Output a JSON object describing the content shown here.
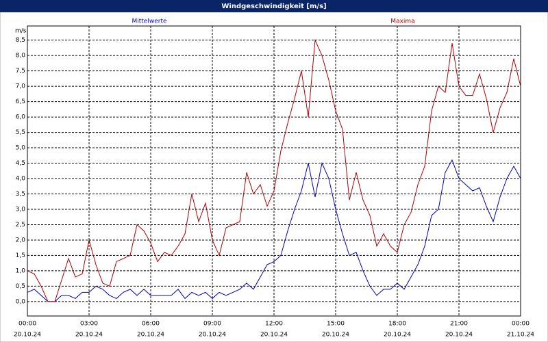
{
  "chart_data": {
    "type": "line",
    "title": "Windgeschwindigkeit [m/s]",
    "y_label": "m/s",
    "x": [
      0,
      20,
      40,
      60,
      80,
      100,
      120,
      140,
      160,
      180,
      200,
      220,
      240,
      260,
      280,
      300,
      320,
      340,
      360,
      380,
      400,
      420,
      440,
      460,
      480,
      500,
      520,
      540,
      560,
      580,
      600,
      620,
      640,
      660,
      680,
      700,
      720,
      740,
      760,
      780,
      800,
      820,
      840,
      860,
      880,
      900,
      920,
      940,
      960,
      980,
      1000,
      1020,
      1040,
      1060,
      1080,
      1100,
      1120,
      1140,
      1160,
      1180,
      1200,
      1220,
      1240,
      1260,
      1280,
      1300,
      1320,
      1340,
      1360,
      1380,
      1400,
      1420,
      1440
    ],
    "series": [
      {
        "name": "Mittelwerte",
        "color": "#0000c0",
        "values": [
          0.3,
          0.4,
          0.2,
          0.0,
          0.0,
          0.2,
          0.2,
          0.1,
          0.3,
          0.3,
          0.5,
          0.4,
          0.2,
          0.1,
          0.3,
          0.4,
          0.2,
          0.4,
          0.2,
          0.2,
          0.2,
          0.2,
          0.4,
          0.1,
          0.3,
          0.2,
          0.3,
          0.1,
          0.3,
          0.2,
          0.3,
          0.4,
          0.6,
          0.4,
          0.8,
          1.2,
          1.3,
          1.5,
          2.3,
          3.0,
          3.6,
          4.5,
          3.4,
          4.5,
          4.0,
          3.0,
          2.2,
          1.5,
          1.6,
          1.0,
          0.5,
          0.2,
          0.4,
          0.4,
          0.6,
          0.4,
          0.8,
          1.2,
          1.8,
          2.8,
          3.0,
          4.2,
          4.6,
          4.0,
          3.8,
          3.6,
          3.7,
          3.1,
          2.6,
          3.4,
          4.0,
          4.4,
          4.0
        ]
      },
      {
        "name": "Maxima",
        "color": "#b00000",
        "values": [
          1.0,
          0.9,
          0.5,
          0.0,
          0.0,
          0.7,
          1.4,
          0.8,
          0.9,
          2.0,
          1.2,
          0.6,
          0.5,
          1.3,
          1.4,
          1.5,
          2.5,
          2.3,
          1.9,
          1.3,
          1.6,
          1.5,
          1.8,
          2.2,
          3.5,
          2.6,
          3.2,
          2.0,
          1.5,
          2.4,
          2.5,
          2.6,
          4.2,
          3.5,
          3.8,
          3.1,
          3.6,
          4.9,
          5.8,
          6.6,
          7.5,
          6.0,
          8.5,
          8.0,
          7.2,
          6.2,
          5.6,
          3.3,
          4.2,
          3.3,
          2.8,
          1.8,
          2.2,
          1.8,
          1.6,
          2.5,
          2.9,
          3.8,
          4.4,
          6.2,
          7.0,
          6.8,
          8.4,
          7.0,
          6.7,
          6.7,
          7.4,
          6.6,
          5.5,
          6.3,
          6.8,
          7.9,
          7.0
        ]
      }
    ],
    "xlim": [
      0,
      1440
    ],
    "xticks": [
      {
        "value": 0,
        "label": "00:00"
      },
      {
        "value": 180,
        "label": "03:00"
      },
      {
        "value": 360,
        "label": "06:00"
      },
      {
        "value": 540,
        "label": "09:00"
      },
      {
        "value": 720,
        "label": "12:00"
      },
      {
        "value": 900,
        "label": "15:00"
      },
      {
        "value": 1080,
        "label": "18:00"
      },
      {
        "value": 1260,
        "label": "21:00"
      },
      {
        "value": 1440,
        "label": "00:00"
      }
    ],
    "xtick_dates": [
      "20.10.24",
      "20.10.24",
      "20.10.24",
      "20.10.24",
      "20.10.24",
      "20.10.24",
      "20.10.24",
      "20.10.24",
      "21.10.24"
    ],
    "ylim": [
      -0.47,
      8.96
    ],
    "yticks": [
      {
        "value": 0,
        "label": "0,0"
      },
      {
        "value": 0.5,
        "label": "0,5"
      },
      {
        "value": 1,
        "label": "1,0"
      },
      {
        "value": 1.5,
        "label": "1,5"
      },
      {
        "value": 2,
        "label": "2,0"
      },
      {
        "value": 2.5,
        "label": "2,5"
      },
      {
        "value": 3,
        "label": "3,0"
      },
      {
        "value": 3.5,
        "label": "3,5"
      },
      {
        "value": 4,
        "label": "4,0"
      },
      {
        "value": 4.5,
        "label": "4,5"
      },
      {
        "value": 5,
        "label": "5,0"
      },
      {
        "value": 5.5,
        "label": "5,5"
      },
      {
        "value": 6,
        "label": "6,0"
      },
      {
        "value": 6.5,
        "label": "6,5"
      },
      {
        "value": 7,
        "label": "7,0"
      },
      {
        "value": 7.5,
        "label": "7,5"
      },
      {
        "value": 8,
        "label": "8,0"
      },
      {
        "value": 8.5,
        "label": "8,5"
      }
    ],
    "grid": true
  }
}
